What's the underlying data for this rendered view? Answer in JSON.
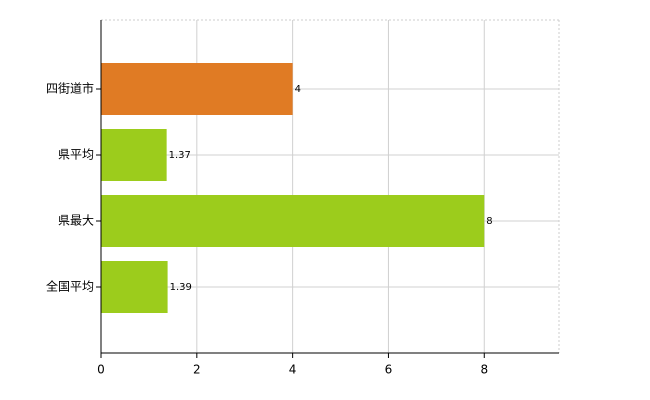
{
  "chart_data": {
    "type": "bar",
    "orientation": "horizontal",
    "categories": [
      "四街道市",
      "県平均",
      "県最大",
      "全国平均"
    ],
    "values": [
      4,
      1.37,
      8,
      1.39
    ],
    "colors": [
      "#e07b24",
      "#9ccc1c",
      "#9ccc1c",
      "#9ccc1c"
    ],
    "xlim": [
      0,
      9.56
    ],
    "xticks": [
      0,
      2,
      4,
      6,
      8
    ],
    "grid": true
  }
}
